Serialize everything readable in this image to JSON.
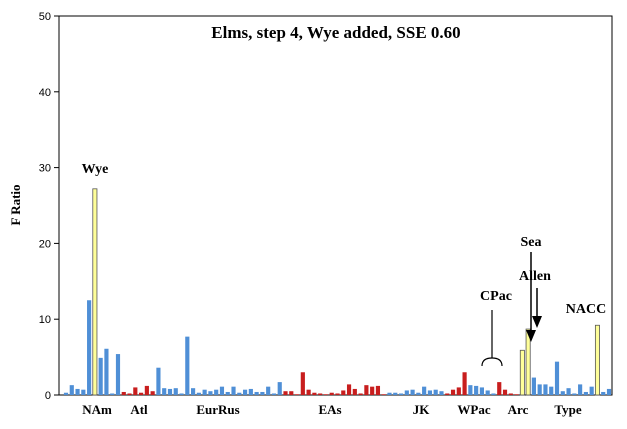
{
  "chart_data": {
    "type": "bar",
    "title": "Elms, step 4, Wye added, SSE 0.60",
    "ylabel": "F Ratio",
    "xlabel": "",
    "ylim": [
      0,
      50
    ],
    "yticks": [
      0,
      10,
      20,
      30,
      40,
      50
    ],
    "grid": false,
    "legend": "none",
    "colors": {
      "blue": "#4f8fd6",
      "red": "#c81e1e",
      "yellow": "#ffff99",
      "axis": "#000000"
    },
    "group_labels": [
      "NAm",
      "Atl",
      "EurRus",
      "EAs",
      "JK",
      "WPac",
      "Arc",
      "Type"
    ],
    "annotations": [
      "Wye",
      "Sea",
      "Allen",
      "CPac",
      "NACC"
    ],
    "bars": [
      {
        "v": 0.3,
        "c": "blue"
      },
      {
        "v": 1.3,
        "c": "blue"
      },
      {
        "v": 0.8,
        "c": "blue"
      },
      {
        "v": 0.7,
        "c": "blue"
      },
      {
        "v": 12.5,
        "c": "blue"
      },
      {
        "v": 27.2,
        "c": "yellow"
      },
      {
        "v": 4.9,
        "c": "blue"
      },
      {
        "v": 6.1,
        "c": "blue"
      },
      {
        "v": 0.2,
        "c": "blue"
      },
      {
        "v": 5.4,
        "c": "blue"
      },
      {
        "v": 0.4,
        "c": "red"
      },
      {
        "v": 0.2,
        "c": "red"
      },
      {
        "v": 1.0,
        "c": "red"
      },
      {
        "v": 0.3,
        "c": "red"
      },
      {
        "v": 1.2,
        "c": "red"
      },
      {
        "v": 0.5,
        "c": "red"
      },
      {
        "v": 3.6,
        "c": "blue"
      },
      {
        "v": 0.9,
        "c": "blue"
      },
      {
        "v": 0.8,
        "c": "blue"
      },
      {
        "v": 0.9,
        "c": "blue"
      },
      {
        "v": 0.2,
        "c": "blue"
      },
      {
        "v": 7.7,
        "c": "blue"
      },
      {
        "v": 0.9,
        "c": "blue"
      },
      {
        "v": 0.3,
        "c": "blue"
      },
      {
        "v": 0.7,
        "c": "blue"
      },
      {
        "v": 0.5,
        "c": "blue"
      },
      {
        "v": 0.7,
        "c": "blue"
      },
      {
        "v": 1.1,
        "c": "blue"
      },
      {
        "v": 0.4,
        "c": "blue"
      },
      {
        "v": 1.1,
        "c": "blue"
      },
      {
        "v": 0.3,
        "c": "blue"
      },
      {
        "v": 0.7,
        "c": "blue"
      },
      {
        "v": 0.8,
        "c": "blue"
      },
      {
        "v": 0.4,
        "c": "blue"
      },
      {
        "v": 0.4,
        "c": "blue"
      },
      {
        "v": 1.1,
        "c": "blue"
      },
      {
        "v": 0.2,
        "c": "blue"
      },
      {
        "v": 1.7,
        "c": "blue"
      },
      {
        "v": 0.5,
        "c": "red"
      },
      {
        "v": 0.5,
        "c": "red"
      },
      {
        "v": 0.1,
        "c": "red"
      },
      {
        "v": 3.0,
        "c": "red"
      },
      {
        "v": 0.7,
        "c": "red"
      },
      {
        "v": 0.3,
        "c": "red"
      },
      {
        "v": 0.2,
        "c": "red"
      },
      {
        "v": 0.1,
        "c": "red"
      },
      {
        "v": 0.3,
        "c": "red"
      },
      {
        "v": 0.2,
        "c": "red"
      },
      {
        "v": 0.6,
        "c": "red"
      },
      {
        "v": 1.4,
        "c": "red"
      },
      {
        "v": 0.8,
        "c": "red"
      },
      {
        "v": 0.2,
        "c": "red"
      },
      {
        "v": 1.3,
        "c": "red"
      },
      {
        "v": 1.1,
        "c": "red"
      },
      {
        "v": 1.2,
        "c": "red"
      },
      {
        "v": 0.1,
        "c": "red"
      },
      {
        "v": 0.3,
        "c": "blue"
      },
      {
        "v": 0.3,
        "c": "blue"
      },
      {
        "v": 0.2,
        "c": "blue"
      },
      {
        "v": 0.6,
        "c": "blue"
      },
      {
        "v": 0.7,
        "c": "blue"
      },
      {
        "v": 0.3,
        "c": "blue"
      },
      {
        "v": 1.1,
        "c": "blue"
      },
      {
        "v": 0.6,
        "c": "blue"
      },
      {
        "v": 0.7,
        "c": "blue"
      },
      {
        "v": 0.5,
        "c": "blue"
      },
      {
        "v": 0.2,
        "c": "red"
      },
      {
        "v": 0.7,
        "c": "red"
      },
      {
        "v": 1.0,
        "c": "red"
      },
      {
        "v": 3.0,
        "c": "red"
      },
      {
        "v": 1.3,
        "c": "blue"
      },
      {
        "v": 1.2,
        "c": "blue"
      },
      {
        "v": 1.0,
        "c": "blue"
      },
      {
        "v": 0.6,
        "c": "blue"
      },
      {
        "v": 0.2,
        "c": "blue"
      },
      {
        "v": 1.7,
        "c": "red"
      },
      {
        "v": 0.7,
        "c": "red"
      },
      {
        "v": 0.2,
        "c": "red"
      },
      {
        "v": 0.1,
        "c": "red"
      },
      {
        "v": 5.9,
        "c": "yellow"
      },
      {
        "v": 8.7,
        "c": "yellow"
      },
      {
        "v": 2.3,
        "c": "blue"
      },
      {
        "v": 1.4,
        "c": "blue"
      },
      {
        "v": 1.4,
        "c": "blue"
      },
      {
        "v": 1.1,
        "c": "blue"
      },
      {
        "v": 4.4,
        "c": "blue"
      },
      {
        "v": 0.5,
        "c": "blue"
      },
      {
        "v": 0.9,
        "c": "blue"
      },
      {
        "v": 0.2,
        "c": "blue"
      },
      {
        "v": 1.4,
        "c": "blue"
      },
      {
        "v": 0.4,
        "c": "blue"
      },
      {
        "v": 1.1,
        "c": "blue"
      },
      {
        "v": 9.2,
        "c": "yellow"
      },
      {
        "v": 0.4,
        "c": "blue"
      },
      {
        "v": 0.8,
        "c": "blue"
      }
    ]
  }
}
